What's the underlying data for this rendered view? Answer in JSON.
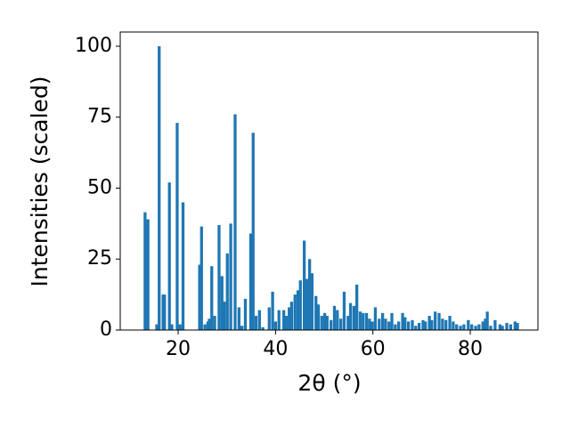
{
  "chart_data": {
    "type": "bar",
    "xlabel": "2θ (°)",
    "ylabel": "Intensities (scaled)",
    "color": "#1f77b4",
    "x": [
      13.2,
      13.8,
      15.6,
      16.1,
      16.9,
      17.2,
      18.2,
      18.7,
      19.8,
      20.4,
      21.0,
      24.4,
      24.8,
      25.5,
      26.1,
      26.4,
      26.9,
      27.5,
      28.4,
      29.0,
      29.5,
      30.1,
      30.8,
      31.7,
      32.5,
      33.1,
      33.8,
      34.9,
      35.4,
      36.0,
      36.7,
      37.4,
      38.7,
      39.4,
      40.0,
      40.7,
      41.7,
      42.2,
      42.8,
      43.3,
      44.0,
      44.6,
      45.1,
      45.9,
      46.4,
      47.0,
      47.5,
      48.3,
      48.8,
      49.5,
      50.1,
      50.6,
      51.4,
      52.1,
      52.7,
      53.4,
      54.1,
      54.9,
      55.4,
      56.1,
      56.7,
      57.4,
      58.0,
      58.7,
      59.3,
      59.9,
      60.5,
      61.3,
      62.0,
      62.6,
      63.3,
      63.9,
      64.6,
      65.3,
      66.1,
      66.6,
      67.3,
      68.1,
      68.8,
      69.5,
      70.3,
      70.8,
      71.6,
      72.1,
      72.8,
      73.6,
      74.3,
      75.0,
      75.8,
      76.5,
      77.2,
      78.0,
      78.7,
      79.6,
      80.3,
      81.1,
      81.8,
      82.6,
      83.1,
      83.5,
      84.2,
      85.1,
      86.1,
      86.6,
      87.5,
      88.3,
      89.2,
      89.7
    ],
    "values": [
      41.5,
      39,
      2,
      100,
      12.5,
      12.5,
      52,
      2,
      73,
      2,
      45,
      23,
      36.5,
      2,
      3,
      4,
      22.5,
      5,
      37,
      19,
      10,
      27,
      37.5,
      76,
      8,
      1.5,
      11,
      34,
      69.5,
      5,
      7,
      1,
      8,
      13.5,
      3,
      7,
      7,
      5,
      8,
      10,
      12.5,
      14,
      17.5,
      31.5,
      18,
      25,
      20,
      12,
      9,
      5,
      6,
      5,
      3.5,
      8.5,
      7,
      4,
      13.5,
      5,
      9.5,
      8.5,
      16,
      6.5,
      6,
      6,
      4,
      3,
      8,
      4,
      6,
      4,
      3,
      6,
      2,
      3,
      6,
      4.5,
      3,
      3.5,
      1.5,
      2.5,
      3.5,
      3,
      5,
      3.5,
      6.5,
      6,
      4,
      3.5,
      5,
      3,
      2,
      1.5,
      2,
      3.5,
      2,
      1.5,
      2,
      3,
      4,
      6.5,
      1.5,
      3.5,
      2,
      1.5,
      2.5,
      2,
      3,
      2.5
    ],
    "xlim": [
      8.1,
      93.9
    ],
    "ylim": [
      0,
      105
    ],
    "xticks": [
      20,
      40,
      60,
      80
    ],
    "yticks": [
      0,
      25,
      50,
      75,
      100
    ]
  }
}
